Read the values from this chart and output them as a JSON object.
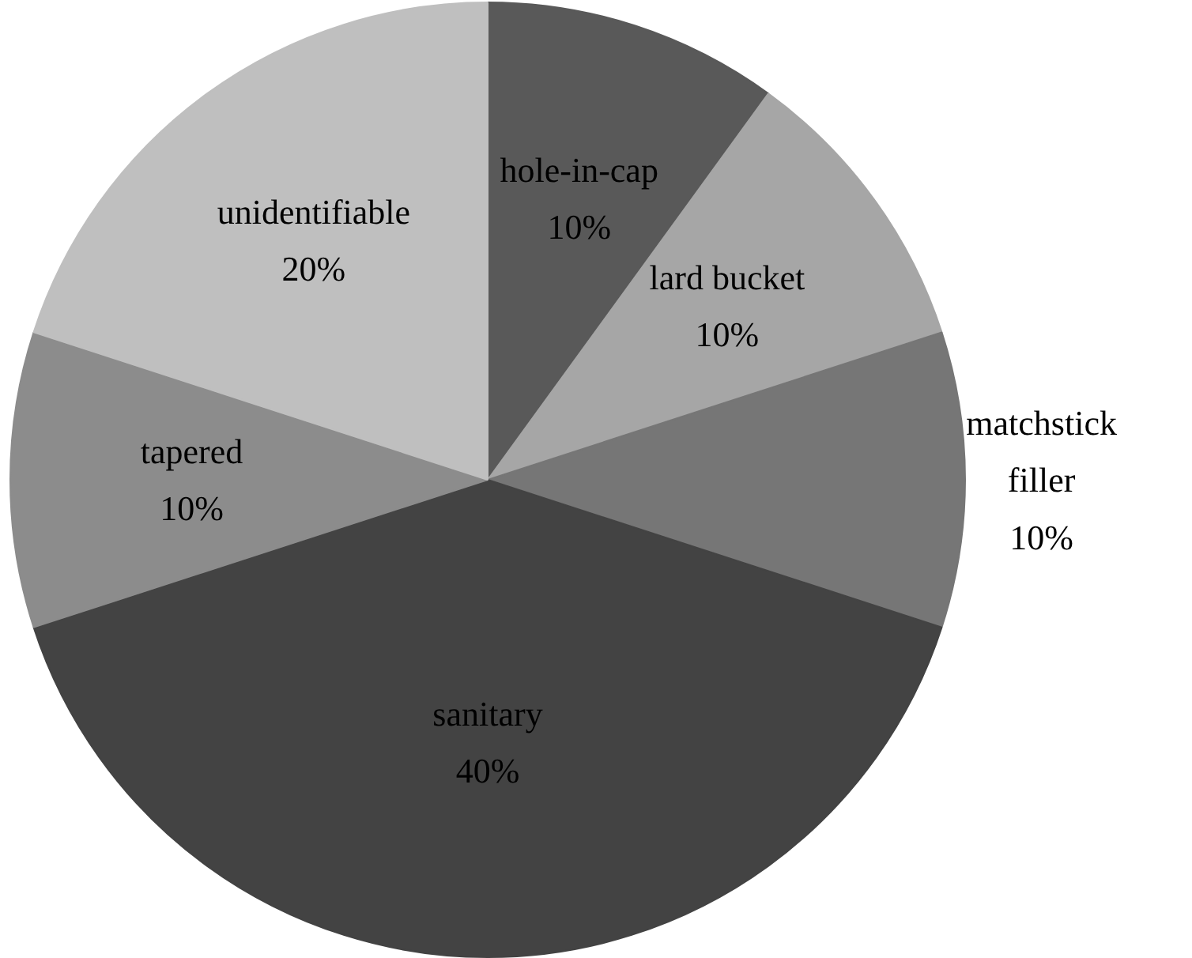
{
  "chart_data": {
    "type": "pie",
    "categories": [
      "hole-in-cap",
      "lard bucket",
      "matchstick filler",
      "sanitary",
      "tapered",
      "unidentifiable"
    ],
    "values": [
      10,
      10,
      10,
      40,
      10,
      20
    ],
    "colors": [
      "#595959",
      "#a6a6a6",
      "#767676",
      "#434343",
      "#8c8c8c",
      "#bfbfbf"
    ],
    "value_labels": [
      "10%",
      "10%",
      "10%",
      "40%",
      "10%",
      "20%"
    ]
  }
}
